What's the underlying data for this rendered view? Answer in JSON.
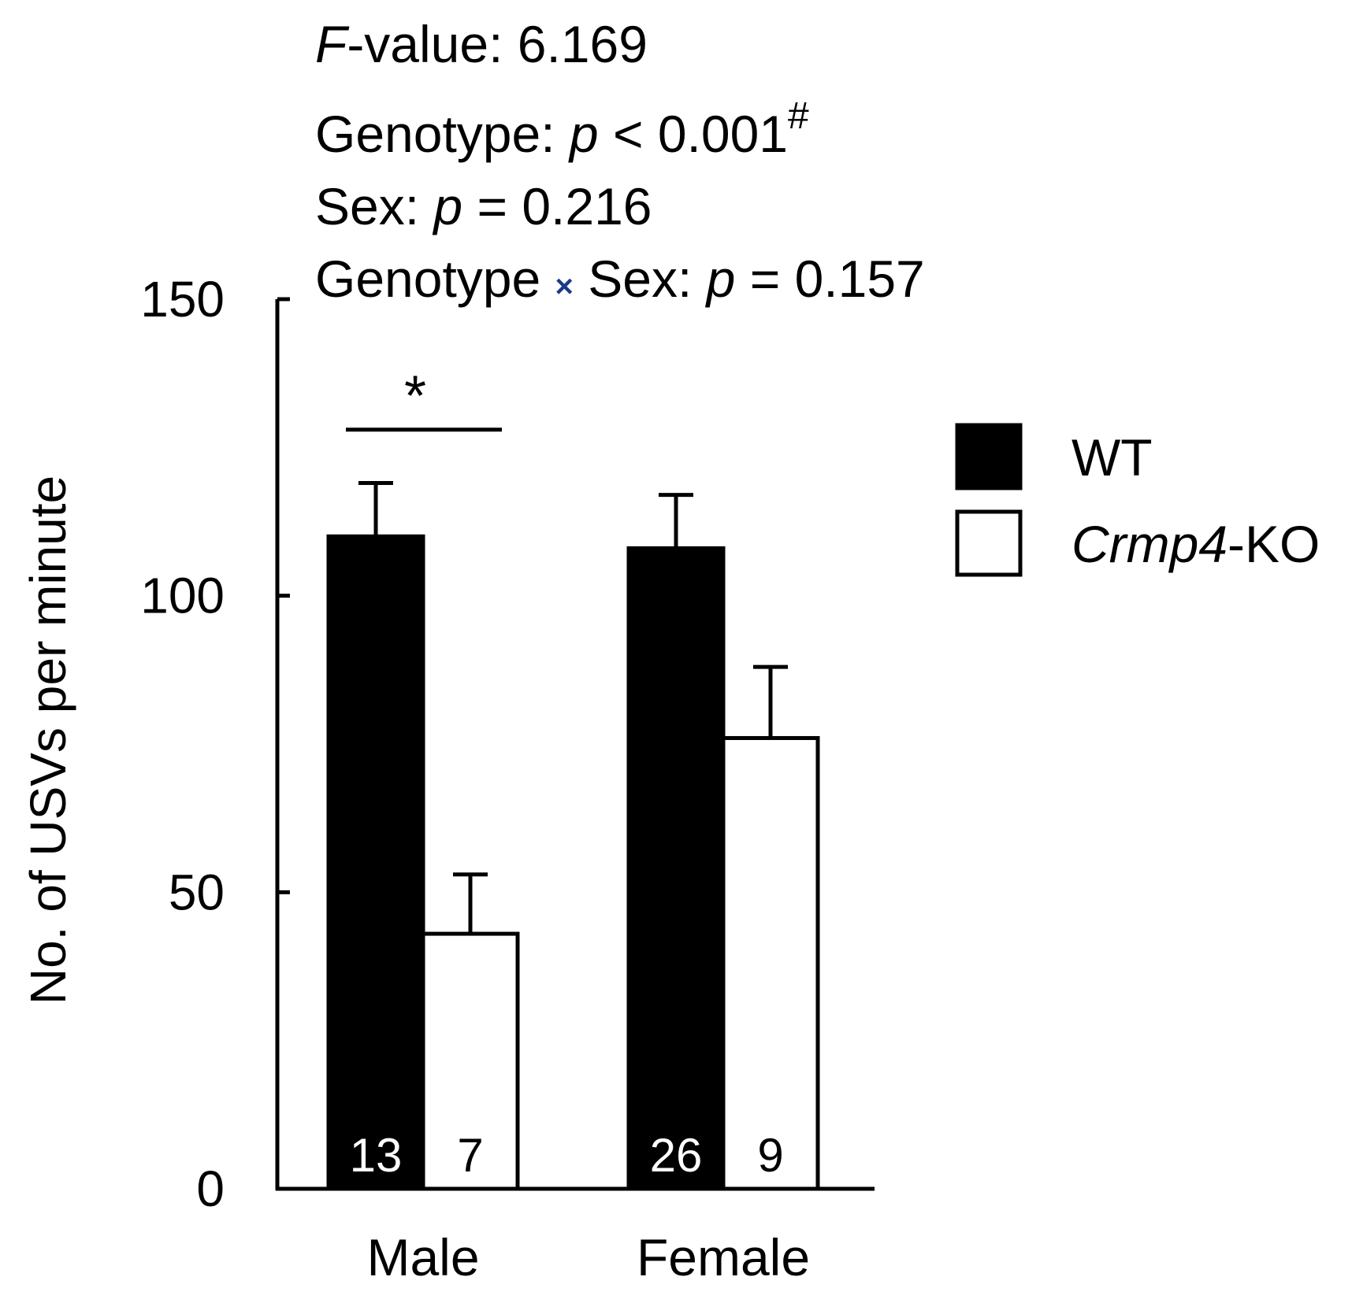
{
  "stats": {
    "fvalue_prefix": "F",
    "fvalue_rest": "-value: 6.169",
    "genotype_label": "Genotype: ",
    "genotype_p": "p",
    "genotype_rest": " < 0.001",
    "genotype_mark": "#",
    "sex_label": "Sex: ",
    "sex_p": "p",
    "sex_rest": " = 0.216",
    "interaction_label_a": "Genotype ",
    "interaction_times": "×",
    "interaction_label_b": " Sex: ",
    "interaction_p": "p",
    "interaction_rest": " = 0.157"
  },
  "chart_data": {
    "type": "bar",
    "title": "",
    "xlabel": "",
    "ylabel": "No. of USVs per minute",
    "ylim": [
      0,
      150
    ],
    "yticks": [
      0,
      50,
      100,
      150
    ],
    "categories": [
      "Male",
      "Female"
    ],
    "series": [
      {
        "name": "WT",
        "fill": "#000000",
        "values": [
          110,
          108
        ],
        "errors": [
          9,
          9
        ],
        "n": [
          "13",
          "26"
        ],
        "n_color": "#ffffff"
      },
      {
        "name_italic": "Crmp4",
        "name_rest": "-KO",
        "fill": "#ffffff",
        "values": [
          43,
          76
        ],
        "errors": [
          10,
          12
        ],
        "n": [
          "7",
          "9"
        ],
        "n_color": "#000000"
      }
    ],
    "annotations": [
      {
        "text": "*",
        "category": "Male",
        "y": 128
      }
    ],
    "legend_position": "right",
    "grid": false
  }
}
